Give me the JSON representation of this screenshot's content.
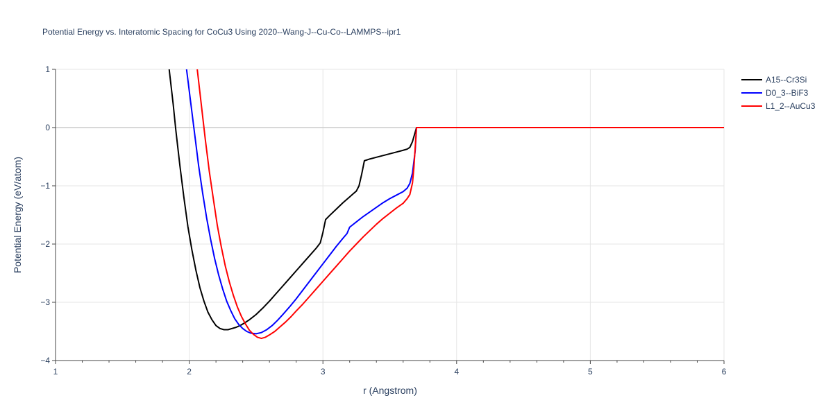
{
  "chart_data": {
    "type": "line",
    "title": "Potential Energy vs. Interatomic Spacing for CoCu3 Using 2020--Wang-J--Cu-Co--LAMMPS--ipr1",
    "xlabel": "r (Angstrom)",
    "ylabel": "Potential Energy (eV/atom)",
    "xlim": [
      1,
      6
    ],
    "ylim": [
      -4,
      1
    ],
    "x_ticks": [
      1,
      2,
      3,
      4,
      5,
      6
    ],
    "x_tick_labels": [
      "1",
      "2",
      "3",
      "4",
      "5",
      "6"
    ],
    "y_ticks": [
      1,
      0,
      -1,
      -2,
      -3,
      -4
    ],
    "y_tick_labels": [
      "1",
      "0",
      "−1",
      "−2",
      "−3",
      "−4"
    ],
    "x_minor_ticks": [
      1.2,
      1.4,
      1.6,
      1.8,
      2.2,
      2.4,
      2.6,
      2.8,
      3.2,
      3.4,
      3.6,
      3.8,
      4.2,
      4.4,
      4.6,
      4.8,
      5.2,
      5.4,
      5.6,
      5.8
    ],
    "grid": true,
    "legend_position": "top-right",
    "series": [
      {
        "name": "A15--Cr3Si",
        "color": "#000000",
        "x": [
          1.85,
          1.88,
          1.9,
          1.93,
          1.96,
          1.99,
          2.02,
          2.05,
          2.08,
          2.11,
          2.14,
          2.17,
          2.2,
          2.23,
          2.26,
          2.29,
          2.32,
          2.35,
          2.38,
          2.41,
          2.45,
          2.5,
          2.55,
          2.6,
          2.65,
          2.7,
          2.75,
          2.8,
          2.85,
          2.9,
          2.95,
          2.98,
          3.0,
          3.02,
          3.05,
          3.1,
          3.15,
          3.2,
          3.25,
          3.27,
          3.29,
          3.31,
          3.35,
          3.4,
          3.45,
          3.5,
          3.55,
          3.6,
          3.63,
          3.65,
          3.67,
          3.7,
          4.0,
          4.5,
          5.0,
          5.5,
          6.0
        ],
        "y": [
          1.0,
          0.4,
          -0.05,
          -0.65,
          -1.2,
          -1.7,
          -2.1,
          -2.45,
          -2.75,
          -2.98,
          -3.17,
          -3.3,
          -3.4,
          -3.45,
          -3.47,
          -3.47,
          -3.45,
          -3.43,
          -3.4,
          -3.36,
          -3.3,
          -3.21,
          -3.1,
          -2.98,
          -2.85,
          -2.72,
          -2.59,
          -2.46,
          -2.33,
          -2.2,
          -2.07,
          -1.98,
          -1.8,
          -1.58,
          -1.51,
          -1.4,
          -1.29,
          -1.19,
          -1.09,
          -1.0,
          -0.8,
          -0.57,
          -0.54,
          -0.51,
          -0.48,
          -0.45,
          -0.42,
          -0.39,
          -0.37,
          -0.34,
          -0.24,
          0.0,
          0.0,
          0.0,
          0.0,
          0.0,
          0.0
        ]
      },
      {
        "name": "D0_3--BiF3",
        "color": "#0000ff",
        "x": [
          1.98,
          2.01,
          2.04,
          2.07,
          2.1,
          2.13,
          2.16,
          2.19,
          2.22,
          2.25,
          2.28,
          2.31,
          2.34,
          2.37,
          2.4,
          2.43,
          2.46,
          2.5,
          2.54,
          2.58,
          2.62,
          2.66,
          2.7,
          2.75,
          2.8,
          2.85,
          2.9,
          2.95,
          3.0,
          3.05,
          3.1,
          3.15,
          3.18,
          3.2,
          3.25,
          3.3,
          3.35,
          3.4,
          3.45,
          3.5,
          3.55,
          3.6,
          3.63,
          3.65,
          3.67,
          3.69,
          3.7,
          4.0,
          4.5,
          5.0,
          5.5,
          6.0
        ],
        "y": [
          1.0,
          0.45,
          -0.1,
          -0.65,
          -1.12,
          -1.55,
          -1.92,
          -2.25,
          -2.53,
          -2.77,
          -2.98,
          -3.14,
          -3.28,
          -3.38,
          -3.45,
          -3.5,
          -3.53,
          -3.54,
          -3.52,
          -3.47,
          -3.4,
          -3.31,
          -3.21,
          -3.08,
          -2.94,
          -2.79,
          -2.64,
          -2.49,
          -2.34,
          -2.19,
          -2.04,
          -1.9,
          -1.82,
          -1.71,
          -1.62,
          -1.53,
          -1.45,
          -1.37,
          -1.29,
          -1.22,
          -1.16,
          -1.1,
          -1.04,
          -0.96,
          -0.78,
          -0.4,
          0.0,
          0.0,
          0.0,
          0.0,
          0.0,
          0.0
        ]
      },
      {
        "name": "L1_2--AuCu3",
        "color": "#ff0000",
        "x": [
          2.06,
          2.09,
          2.12,
          2.15,
          2.18,
          2.21,
          2.24,
          2.27,
          2.3,
          2.33,
          2.36,
          2.39,
          2.42,
          2.45,
          2.48,
          2.51,
          2.54,
          2.57,
          2.6,
          2.64,
          2.68,
          2.72,
          2.76,
          2.8,
          2.85,
          2.9,
          2.95,
          3.0,
          3.05,
          3.1,
          3.15,
          3.2,
          3.25,
          3.3,
          3.35,
          3.4,
          3.45,
          3.5,
          3.55,
          3.6,
          3.63,
          3.65,
          3.67,
          3.68,
          3.69,
          3.7,
          4.0,
          4.5,
          5.0,
          5.5,
          6.0
        ],
        "y": [
          1.0,
          0.4,
          -0.2,
          -0.75,
          -1.22,
          -1.68,
          -2.05,
          -2.38,
          -2.65,
          -2.88,
          -3.08,
          -3.24,
          -3.37,
          -3.48,
          -3.55,
          -3.6,
          -3.62,
          -3.6,
          -3.56,
          -3.5,
          -3.42,
          -3.34,
          -3.25,
          -3.15,
          -3.03,
          -2.9,
          -2.77,
          -2.64,
          -2.51,
          -2.38,
          -2.25,
          -2.12,
          -2.0,
          -1.88,
          -1.77,
          -1.66,
          -1.56,
          -1.47,
          -1.38,
          -1.3,
          -1.22,
          -1.15,
          -0.95,
          -0.7,
          -0.35,
          0.0,
          0.0,
          0.0,
          0.0,
          0.0,
          0.0
        ]
      }
    ]
  }
}
